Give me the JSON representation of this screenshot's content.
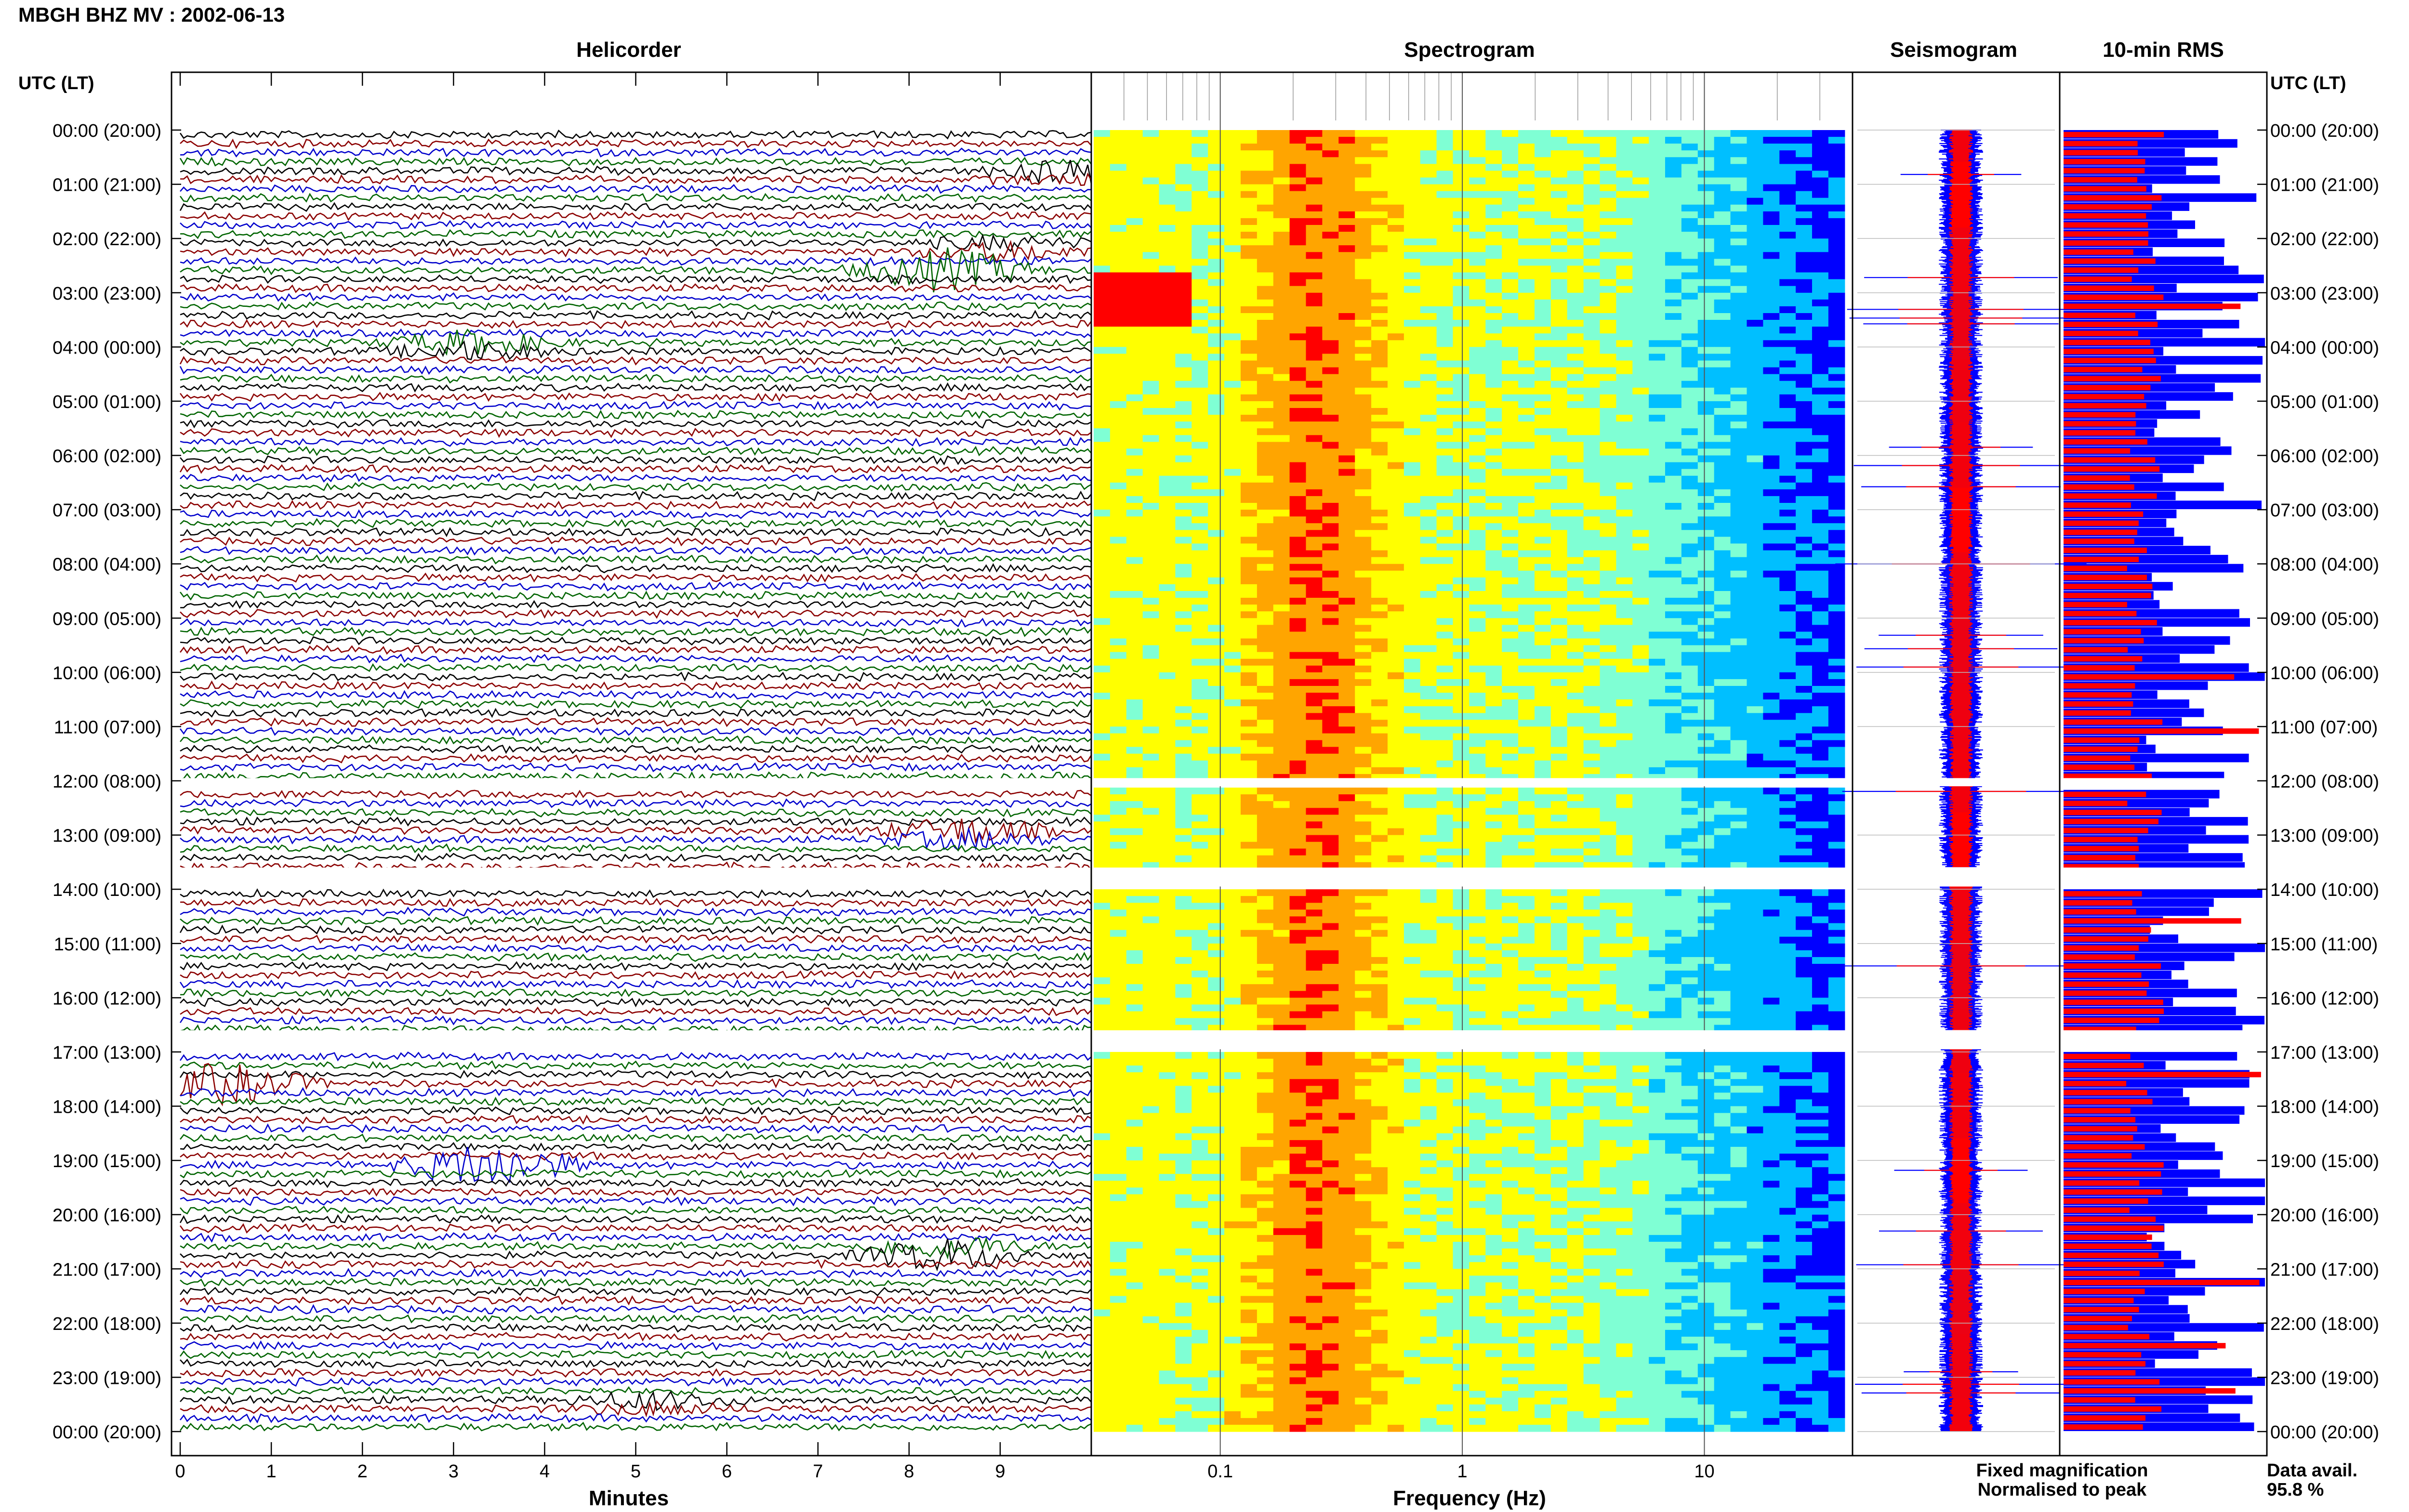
{
  "chart_data": {
    "type": "heatmap",
    "title": "MBGH BHZ MV : 2002-06-13",
    "row_axis_label": "UTC (LT)",
    "row_labels": [
      "00:00 (20:00)",
      "01:00 (21:00)",
      "02:00 (22:00)",
      "03:00 (23:00)",
      "04:00 (00:00)",
      "05:00 (01:00)",
      "06:00 (02:00)",
      "07:00 (03:00)",
      "08:00 (04:00)",
      "09:00 (05:00)",
      "10:00 (06:00)",
      "11:00 (07:00)",
      "12:00 (08:00)",
      "13:00 (09:00)",
      "14:00 (10:00)",
      "15:00 (11:00)",
      "16:00 (12:00)",
      "17:00 (13:00)",
      "18:00 (14:00)",
      "19:00 (15:00)",
      "20:00 (16:00)",
      "21:00 (17:00)",
      "22:00 (18:00)",
      "23:00 (19:00)",
      "00:00 (20:00)"
    ],
    "data_gaps_utc_hours": [
      [
        11.95,
        12.1
      ],
      [
        13.6,
        13.95
      ],
      [
        16.6,
        16.95
      ]
    ],
    "panels": {
      "helicorder": {
        "title": "Helicorder",
        "xlabel": "Minutes",
        "xlim": [
          0,
          10
        ],
        "xticks": [
          "0",
          "1",
          "2",
          "3",
          "4",
          "5",
          "6",
          "7",
          "8",
          "9"
        ],
        "trace_colors": [
          "#000000",
          "#8b0000",
          "#0000cc",
          "#006400"
        ],
        "events": [
          {
            "hour": 0.7,
            "minute": 9.8,
            "strength": 1.2
          },
          {
            "hour": 2.1,
            "minute": 9.0,
            "strength": 1.0
          },
          {
            "hour": 2.5,
            "minute": 8.4,
            "strength": 1.6
          },
          {
            "hour": 3.9,
            "minute": 3.2,
            "strength": 1.4
          },
          {
            "hour": 12.9,
            "minute": 8.6,
            "strength": 1.6
          },
          {
            "hour": 17.5,
            "minute": 0.5,
            "strength": 1.5
          },
          {
            "hour": 19.0,
            "minute": 3.4,
            "strength": 1.8
          },
          {
            "hour": 20.6,
            "minute": 8.4,
            "strength": 2.0
          },
          {
            "hour": 23.4,
            "minute": 5.2,
            "strength": 1.0
          }
        ]
      },
      "spectrogram": {
        "title": "Spectrogram",
        "xlabel": "Frequency (Hz)",
        "xscale": "log",
        "xlim": [
          0.03,
          40
        ],
        "xticks": [
          "0.1",
          "1",
          "10"
        ],
        "peak_frequency_hz": 0.25,
        "colormap": [
          "#00008b",
          "#0000ff",
          "#00bfff",
          "#7fffd4",
          "#ffff00",
          "#ffa500",
          "#ff0000"
        ]
      },
      "seismogram": {
        "title": "Seismogram",
        "fixed_color": "#0000ff",
        "normalised_color": "#ff0000"
      },
      "rms": {
        "title": "10-min RMS",
        "fixed_color": "#0000ff",
        "normalised_color": "#ff0000"
      }
    },
    "legend": {
      "fixed": "Fixed magnification",
      "normalised": "Normalised to peak"
    },
    "data_availability": {
      "label": "Data avail.",
      "value": "95.8 %"
    }
  }
}
